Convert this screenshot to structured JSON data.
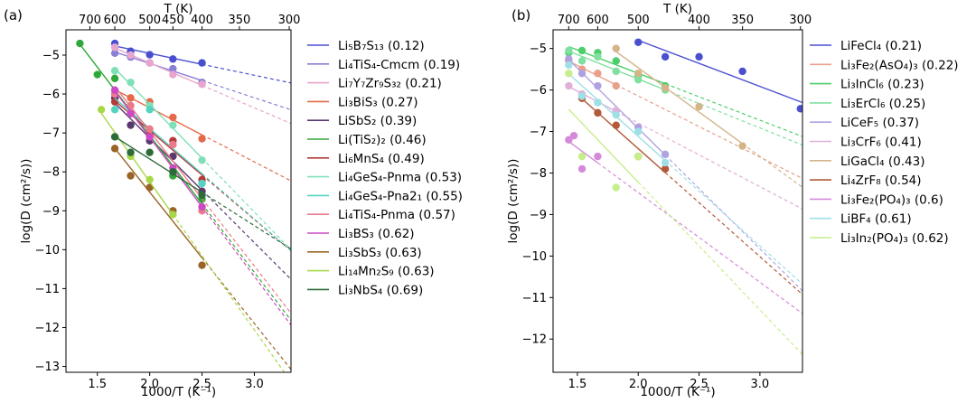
{
  "chart_data": [
    {
      "panel_label": "(a)",
      "type": "scatter",
      "xlabel": "1000/T (K⁻¹)",
      "ylabel": "log(D (cm²/s))",
      "top_label": "T (K)",
      "xlim": [
        1.2,
        3.35
      ],
      "ylim": [
        -13.15,
        -4.35
      ],
      "x_ticks": [
        1.5,
        2.0,
        2.5,
        3.0
      ],
      "x_tick_labels": [
        "1.5",
        "2.0",
        "2.5",
        "3.0"
      ],
      "y_ticks": [
        -5,
        -6,
        -7,
        -8,
        -9,
        -10,
        -11,
        -12,
        -13
      ],
      "y_tick_labels": [
        "−5",
        "−6",
        "−7",
        "−8",
        "−9",
        "−10",
        "−11",
        "−12",
        "−13"
      ],
      "top_ticks": [
        700,
        600,
        500,
        450,
        400,
        350,
        300
      ],
      "top_tick_labels": [
        "700",
        "600",
        "500",
        "450",
        "400",
        "350",
        "300"
      ],
      "series": [
        {
          "name": "Li₅B₇S₁₃ (0.12)",
          "color": "#4a4fd0",
          "x": [
            1.667,
            1.818,
            2.0,
            2.222,
            2.5
          ],
          "y": [
            -4.7,
            -4.9,
            -4.99,
            -5.1,
            -5.2
          ]
        },
        {
          "name": "Li₄TiS₄-Cmcm (0.19)",
          "color": "#8a7fd6",
          "x": [
            1.667,
            1.818,
            2.0,
            2.222,
            2.5
          ],
          "y": [
            -4.95,
            -5.05,
            -5.2,
            -5.35,
            -5.7
          ]
        },
        {
          "name": "Li₇Y₇Zr₉S₃₂ (0.21)",
          "color": "#e8a6cf",
          "x": [
            1.667,
            1.818,
            2.0,
            2.222,
            2.5
          ],
          "y": [
            -4.8,
            -5.0,
            -5.2,
            -5.5,
            -5.75
          ]
        },
        {
          "name": "Li₃BiS₃ (0.27)",
          "color": "#e46a4a",
          "x": [
            1.667,
            1.818,
            2.0,
            2.222,
            2.5
          ],
          "y": [
            -6.0,
            -6.1,
            -6.2,
            -6.6,
            -7.15
          ]
        },
        {
          "name": "LiSbS₂ (0.39)",
          "color": "#59386e",
          "x": [
            1.667,
            1.818,
            2.0,
            2.222,
            2.5
          ],
          "y": [
            -6.1,
            -6.8,
            -7.2,
            -7.6,
            -8.5
          ]
        },
        {
          "name": "Li(TiS₂)₂ (0.46)",
          "color": "#2fa83a",
          "x": [
            1.333,
            1.5,
            1.667,
            1.818,
            2.0,
            2.222,
            2.5
          ],
          "y": [
            -4.7,
            -5.5,
            -5.6,
            -6.5,
            -7.0,
            -8.1,
            -8.7
          ]
        },
        {
          "name": "Li₆MnS₄ (0.49)",
          "color": "#b53a3a",
          "x": [
            1.667,
            1.818,
            2.0,
            2.222,
            2.5
          ],
          "y": [
            -6.2,
            -6.5,
            -7.05,
            -7.2,
            -8.2
          ]
        },
        {
          "name": "Li₄GeS₄-Pnma (0.53)",
          "color": "#7fe0b8",
          "x": [
            1.667,
            1.818,
            2.0,
            2.222,
            2.5
          ],
          "y": [
            -5.4,
            -5.7,
            -6.3,
            -6.8,
            -7.7
          ]
        },
        {
          "name": "Li₄GeS₄-Pna2₁ (0.55)",
          "color": "#55d3c0",
          "x": [
            1.667,
            1.818,
            2.0,
            2.222,
            2.5
          ],
          "y": [
            -6.4,
            -6.5,
            -6.4,
            -7.3,
            -8.3
          ]
        },
        {
          "name": "Li₄TiS₄-Pnma (0.57)",
          "color": "#ec7a8a",
          "x": [
            1.667,
            1.818,
            2.0,
            2.222,
            2.5
          ],
          "y": [
            -6.0,
            -6.3,
            -6.9,
            -7.3,
            -9.0
          ]
        },
        {
          "name": "Li₃BS₃ (0.62)",
          "color": "#cc4ac4",
          "x": [
            1.667,
            1.818,
            2.0,
            2.222,
            2.5
          ],
          "y": [
            -5.9,
            -6.5,
            -7.1,
            -7.9,
            -8.9
          ]
        },
        {
          "name": "Li₃SbS₃ (0.63)",
          "color": "#9a6428",
          "x": [
            1.667,
            1.818,
            2.0,
            2.222,
            2.5
          ],
          "y": [
            -7.4,
            -8.1,
            -8.4,
            -9.0,
            -10.4
          ]
        },
        {
          "name": "Li₁₄Mn₂S₉ (0.63)",
          "color": "#a8d84a",
          "x": [
            1.538,
            1.667,
            1.818,
            2.0,
            2.222
          ],
          "y": [
            -6.4,
            -7.1,
            -7.6,
            -8.2,
            -9.1
          ]
        },
        {
          "name": "Li₃NbS₄ (0.69)",
          "color": "#2e6b3a",
          "x": [
            1.667,
            1.818,
            2.0,
            2.222,
            2.5
          ],
          "y": [
            -7.1,
            -7.5,
            -7.5,
            -8.0,
            -8.6
          ]
        }
      ]
    },
    {
      "panel_label": "(b)",
      "type": "scatter",
      "xlabel": "1000/T (K⁻¹)",
      "ylabel": "log(D (cm²/s))",
      "top_label": "T (K)",
      "xlim": [
        1.3,
        3.35
      ],
      "ylim": [
        -12.8,
        -4.55
      ],
      "x_ticks": [
        1.5,
        2.0,
        2.5,
        3.0
      ],
      "x_tick_labels": [
        "1.5",
        "2.0",
        "2.5",
        "3.0"
      ],
      "y_ticks": [
        -5,
        -6,
        -7,
        -8,
        -9,
        -10,
        -11,
        -12
      ],
      "y_tick_labels": [
        "−5",
        "−6",
        "−7",
        "−8",
        "−9",
        "−10",
        "−11",
        "−12"
      ],
      "top_ticks": [
        700,
        600,
        500,
        400,
        350,
        300
      ],
      "top_tick_labels": [
        "700",
        "600",
        "500",
        "400",
        "350",
        "300"
      ],
      "series": [
        {
          "name": "LiFeCl₄ (0.21)",
          "color": "#4a4fd0",
          "x": [
            2.0,
            2.222,
            2.5,
            2.857,
            3.333
          ],
          "y": [
            -4.85,
            -5.2,
            -5.2,
            -5.55,
            -6.45
          ]
        },
        {
          "name": "Li₃Fe₂(AsO₄)₃ (0.22)",
          "color": "#e8a08a",
          "x": [
            1.429,
            1.538,
            1.667,
            1.818
          ],
          "y": [
            -5.3,
            -5.5,
            -5.6,
            -5.9
          ]
        },
        {
          "name": "Li₃InCl₆ (0.23)",
          "color": "#4ccf6a",
          "x": [
            1.429,
            1.538,
            1.667,
            1.818,
            2.0,
            2.222
          ],
          "y": [
            -5.1,
            -5.05,
            -5.1,
            -5.3,
            -5.65,
            -5.9
          ]
        },
        {
          "name": "Li₃ErCl₆ (0.25)",
          "color": "#7fe0a0",
          "x": [
            1.429,
            1.538,
            1.667,
            1.818,
            2.0,
            2.222
          ],
          "y": [
            -5.05,
            -5.3,
            -5.2,
            -5.55,
            -5.75,
            -6.0
          ]
        },
        {
          "name": "LiCeF₅ (0.37)",
          "color": "#b0a2e0",
          "x": [
            1.429,
            1.538,
            1.667,
            1.818,
            2.0,
            2.222
          ],
          "y": [
            -5.25,
            -5.6,
            -5.9,
            -6.5,
            -6.9,
            -7.55
          ]
        },
        {
          "name": "Li₃CrF₆ (0.41)",
          "color": "#e0b0d8",
          "x": [
            1.429,
            1.538,
            1.667,
            1.818
          ],
          "y": [
            -5.9,
            -6.1,
            -6.3,
            -6.5
          ]
        },
        {
          "name": "LiGaCl₄ (0.43)",
          "color": "#d6b48a",
          "x": [
            1.818,
            2.0,
            2.222,
            2.5,
            2.857
          ],
          "y": [
            -5.0,
            -5.6,
            -5.95,
            -6.4,
            -7.35
          ]
        },
        {
          "name": "Li₄ZrF₈ (0.54)",
          "color": "#b25a3a",
          "x": [
            1.538,
            1.667,
            1.818,
            2.0,
            2.222
          ],
          "y": [
            -6.2,
            -6.55,
            -6.85,
            -7.6,
            -7.9
          ]
        },
        {
          "name": "Li₃Fe₂(PO₄)₃ (0.6)",
          "color": "#d48ad8",
          "x": [
            1.429,
            1.471,
            1.538,
            1.667
          ],
          "y": [
            -7.2,
            -7.1,
            -7.9,
            -7.6
          ]
        },
        {
          "name": "LiBF₄ (0.61)",
          "color": "#9ee0e6",
          "x": [
            1.429,
            1.538,
            1.667,
            1.818,
            2.0,
            2.222
          ],
          "y": [
            -5.4,
            -6.15,
            -6.3,
            -6.6,
            -7.0,
            -7.75
          ]
        },
        {
          "name": "Li₃In₂(PO₄)₃ (0.62)",
          "color": "#c6ee8a",
          "x": [
            1.429,
            1.538,
            1.818,
            2.0
          ],
          "y": [
            -5.6,
            -7.6,
            -8.35,
            -7.6
          ]
        }
      ]
    }
  ]
}
